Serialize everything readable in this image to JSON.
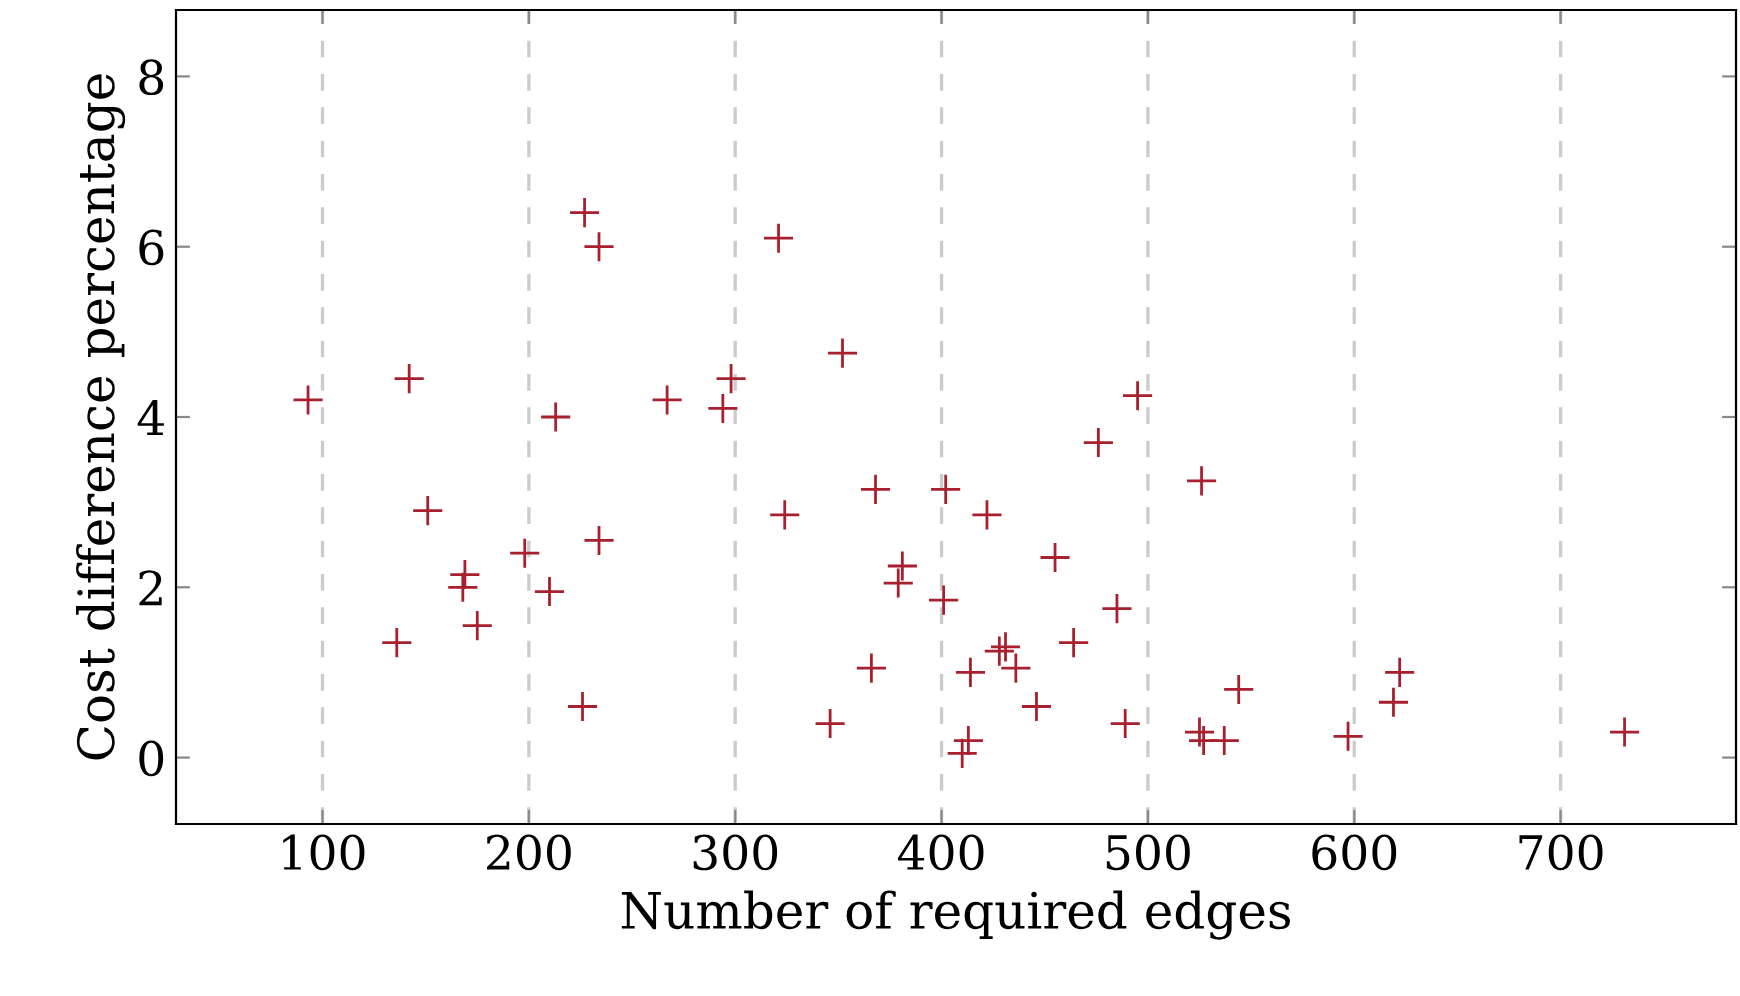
{
  "chart_data": {
    "type": "scatter",
    "xlabel": "Number of required edges",
    "ylabel": "Cost difference percentage",
    "x": [
      93,
      136,
      142,
      151,
      168,
      169,
      175,
      198,
      210,
      213,
      226,
      227,
      234,
      234,
      267,
      294,
      298,
      321,
      324,
      346,
      352,
      366,
      368,
      379,
      381,
      401,
      402,
      410,
      413,
      414,
      422,
      428,
      431,
      436,
      446,
      455,
      464,
      476,
      485,
      489,
      495,
      525,
      526,
      527,
      537,
      544,
      597,
      619,
      622,
      731
    ],
    "series": [
      {
        "color": "#a8202e",
        "values": [
          4.2,
          1.35,
          4.45,
          2.9,
          2.0,
          2.15,
          1.55,
          2.4,
          1.95,
          4.0,
          0.6,
          6.4,
          6.0,
          2.55,
          4.2,
          4.1,
          4.45,
          6.1,
          2.85,
          0.4,
          4.75,
          1.05,
          3.15,
          2.05,
          2.25,
          1.85,
          3.15,
          0.05,
          0.2,
          1.0,
          2.85,
          1.25,
          1.3,
          1.05,
          0.6,
          2.35,
          1.35,
          3.7,
          1.75,
          0.4,
          4.25,
          0.3,
          3.25,
          0.2,
          0.2,
          0.8,
          0.25,
          0.65,
          1.0,
          0.3
        ]
      }
    ],
    "marker": "cross",
    "grid": "x",
    "xlim": [
      29,
      785
    ],
    "ylim": [
      -0.78,
      8.78
    ],
    "xticks": [
      100,
      200,
      300,
      400,
      500,
      600,
      700
    ],
    "yticks": [
      0,
      2,
      4,
      6,
      8
    ]
  }
}
